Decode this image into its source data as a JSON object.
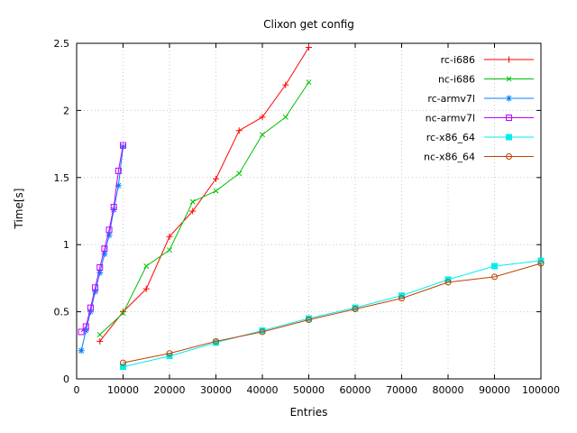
{
  "chart_data": {
    "type": "line",
    "title": "Clixon get config",
    "xlabel": "Entries",
    "ylabel": "Time[s]",
    "xlim": [
      0,
      100000
    ],
    "ylim": [
      0,
      2.5
    ],
    "xticks": [
      0,
      10000,
      20000,
      30000,
      40000,
      50000,
      60000,
      70000,
      80000,
      90000,
      100000
    ],
    "yticks": [
      0,
      0.5,
      1,
      1.5,
      2,
      2.5
    ],
    "grid": true,
    "legend_position": "top-right-inside",
    "series": [
      {
        "name": "rc-i686",
        "color": "#ff0000",
        "marker": "plus",
        "x": [
          5000,
          10000,
          15000,
          20000,
          25000,
          30000,
          35000,
          40000,
          45000,
          50000
        ],
        "y": [
          0.28,
          0.5,
          0.67,
          1.06,
          1.25,
          1.49,
          1.85,
          1.95,
          2.19,
          2.47
        ]
      },
      {
        "name": "nc-i686",
        "color": "#00c000",
        "marker": "cross",
        "x": [
          5000,
          10000,
          15000,
          20000,
          25000,
          30000,
          35000,
          40000,
          45000,
          50000
        ],
        "y": [
          0.33,
          0.49,
          0.84,
          0.96,
          1.32,
          1.4,
          1.53,
          1.82,
          1.95,
          2.21
        ]
      },
      {
        "name": "rc-armv7l",
        "color": "#0080ff",
        "marker": "asterisk",
        "x": [
          1000,
          2000,
          3000,
          4000,
          5000,
          6000,
          7000,
          8000,
          9000,
          10000
        ],
        "y": [
          0.21,
          0.36,
          0.5,
          0.65,
          0.79,
          0.93,
          1.07,
          1.26,
          1.44,
          1.73
        ]
      },
      {
        "name": "nc-armv7l",
        "color": "#c000ff",
        "marker": "square-open",
        "x": [
          1000,
          2000,
          3000,
          4000,
          5000,
          6000,
          7000,
          8000,
          9000,
          10000
        ],
        "y": [
          0.35,
          0.39,
          0.53,
          0.68,
          0.83,
          0.97,
          1.11,
          1.28,
          1.55,
          1.74
        ]
      },
      {
        "name": "rc-x86_64",
        "color": "#00eeee",
        "marker": "square-filled",
        "x": [
          10000,
          20000,
          30000,
          40000,
          50000,
          60000,
          70000,
          80000,
          90000,
          100000
        ],
        "y": [
          0.09,
          0.17,
          0.27,
          0.36,
          0.45,
          0.53,
          0.62,
          0.74,
          0.84,
          0.88
        ]
      },
      {
        "name": "nc-x86_64",
        "color": "#c04000",
        "marker": "circle-open",
        "x": [
          10000,
          20000,
          30000,
          40000,
          50000,
          60000,
          70000,
          80000,
          90000,
          100000
        ],
        "y": [
          0.12,
          0.19,
          0.28,
          0.35,
          0.44,
          0.52,
          0.6,
          0.72,
          0.76,
          0.86
        ]
      }
    ],
    "style": {
      "grid_color": "#c8c8c8",
      "border_color": "#000000",
      "text_color": "#000000",
      "background": "#ffffff"
    }
  }
}
